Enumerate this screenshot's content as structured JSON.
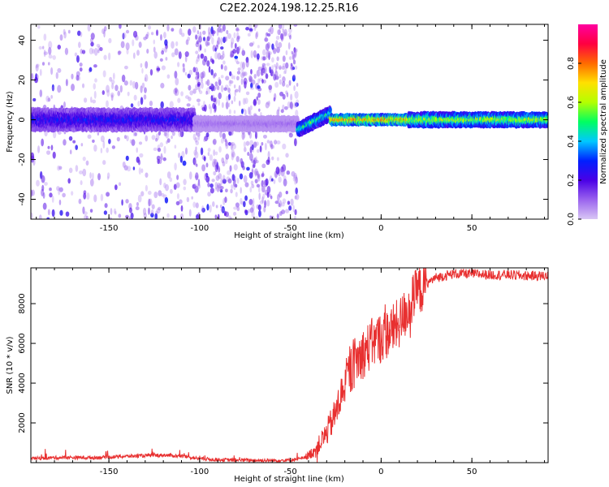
{
  "chart_data": [
    {
      "type": "heatmap",
      "title": "C2E2.2024.198.12.25.R16",
      "xlabel": "Height of straight line (km)",
      "ylabel": "Frequency (Hz)",
      "xlim": [
        -193,
        92
      ],
      "ylim": [
        -50,
        48
      ],
      "x_ticks": [
        -150,
        -100,
        -50,
        0,
        50
      ],
      "y_ticks": [
        -40,
        -20,
        0,
        20,
        40
      ],
      "colorbar": {
        "label": "Normalized spectral amplitude",
        "range": [
          0.0,
          1.0
        ],
        "ticks": [
          0.0,
          0.2,
          0.4,
          0.6,
          0.8
        ],
        "colormap": [
          "#d9c6f5",
          "#9a63ee",
          "#4a00e6",
          "#0020ff",
          "#00c8ff",
          "#00ff60",
          "#b4ff00",
          "#ffe000",
          "#ff6a00",
          "#ff0040",
          "#ff00a0"
        ]
      },
      "segments": [
        {
          "x": [
            -193,
            -103
          ],
          "center_freq_hz": 0,
          "band_halfwidth_hz": 5,
          "peak_amplitude": 0.3,
          "scatter_extent_hz": [
            -50,
            48
          ],
          "scatter_density": 0.35
        },
        {
          "x": [
            -103,
            -46
          ],
          "center_freq_hz": -2,
          "band_halfwidth_hz": 3,
          "peak_amplitude": 0.1,
          "scatter_extent_hz": [
            -50,
            48
          ],
          "scatter_density": 0.85
        },
        {
          "x": [
            -46,
            -28
          ],
          "center_freq_hz": [
            -5,
            3
          ],
          "band_halfwidth_hz": 3,
          "peak_amplitude": 0.55
        },
        {
          "x": [
            -28,
            15
          ],
          "center_freq_hz": 0,
          "band_halfwidth_hz": 2,
          "peak_amplitude": 0.9
        },
        {
          "x": [
            15,
            92
          ],
          "center_freq_hz": 0,
          "band_halfwidth_hz": 3,
          "peak_amplitude": 0.7
        }
      ]
    },
    {
      "type": "line",
      "xlabel": "Height of straight line (km)",
      "ylabel": "SNR (10 * v/v)",
      "xlim": [
        -193,
        92
      ],
      "ylim": [
        0,
        9800
      ],
      "x_ticks": [
        -150,
        -100,
        -50,
        0,
        50
      ],
      "y_ticks": [
        2000,
        4000,
        6000,
        8000
      ],
      "line_color": "#e83030",
      "series": [
        {
          "x": [
            -193,
            -180,
            -170,
            -160,
            -150,
            -140,
            -130,
            -120,
            -110,
            -100,
            -90,
            -80,
            -70,
            -60,
            -50,
            -45,
            -40,
            -35,
            -30,
            -25,
            -20,
            -15,
            -10,
            -5,
            0,
            5,
            10,
            15,
            20,
            25,
            30,
            35,
            40,
            50,
            60,
            70,
            80,
            92
          ],
          "values": [
            200,
            250,
            260,
            250,
            280,
            320,
            350,
            380,
            330,
            200,
            150,
            130,
            120,
            110,
            130,
            200,
            350,
            800,
            1500,
            2500,
            4000,
            5000,
            5500,
            6000,
            6300,
            6600,
            7000,
            7800,
            8600,
            9000,
            9300,
            9400,
            9500,
            9500,
            9450,
            9450,
            9400,
            9400
          ]
        }
      ]
    }
  ]
}
